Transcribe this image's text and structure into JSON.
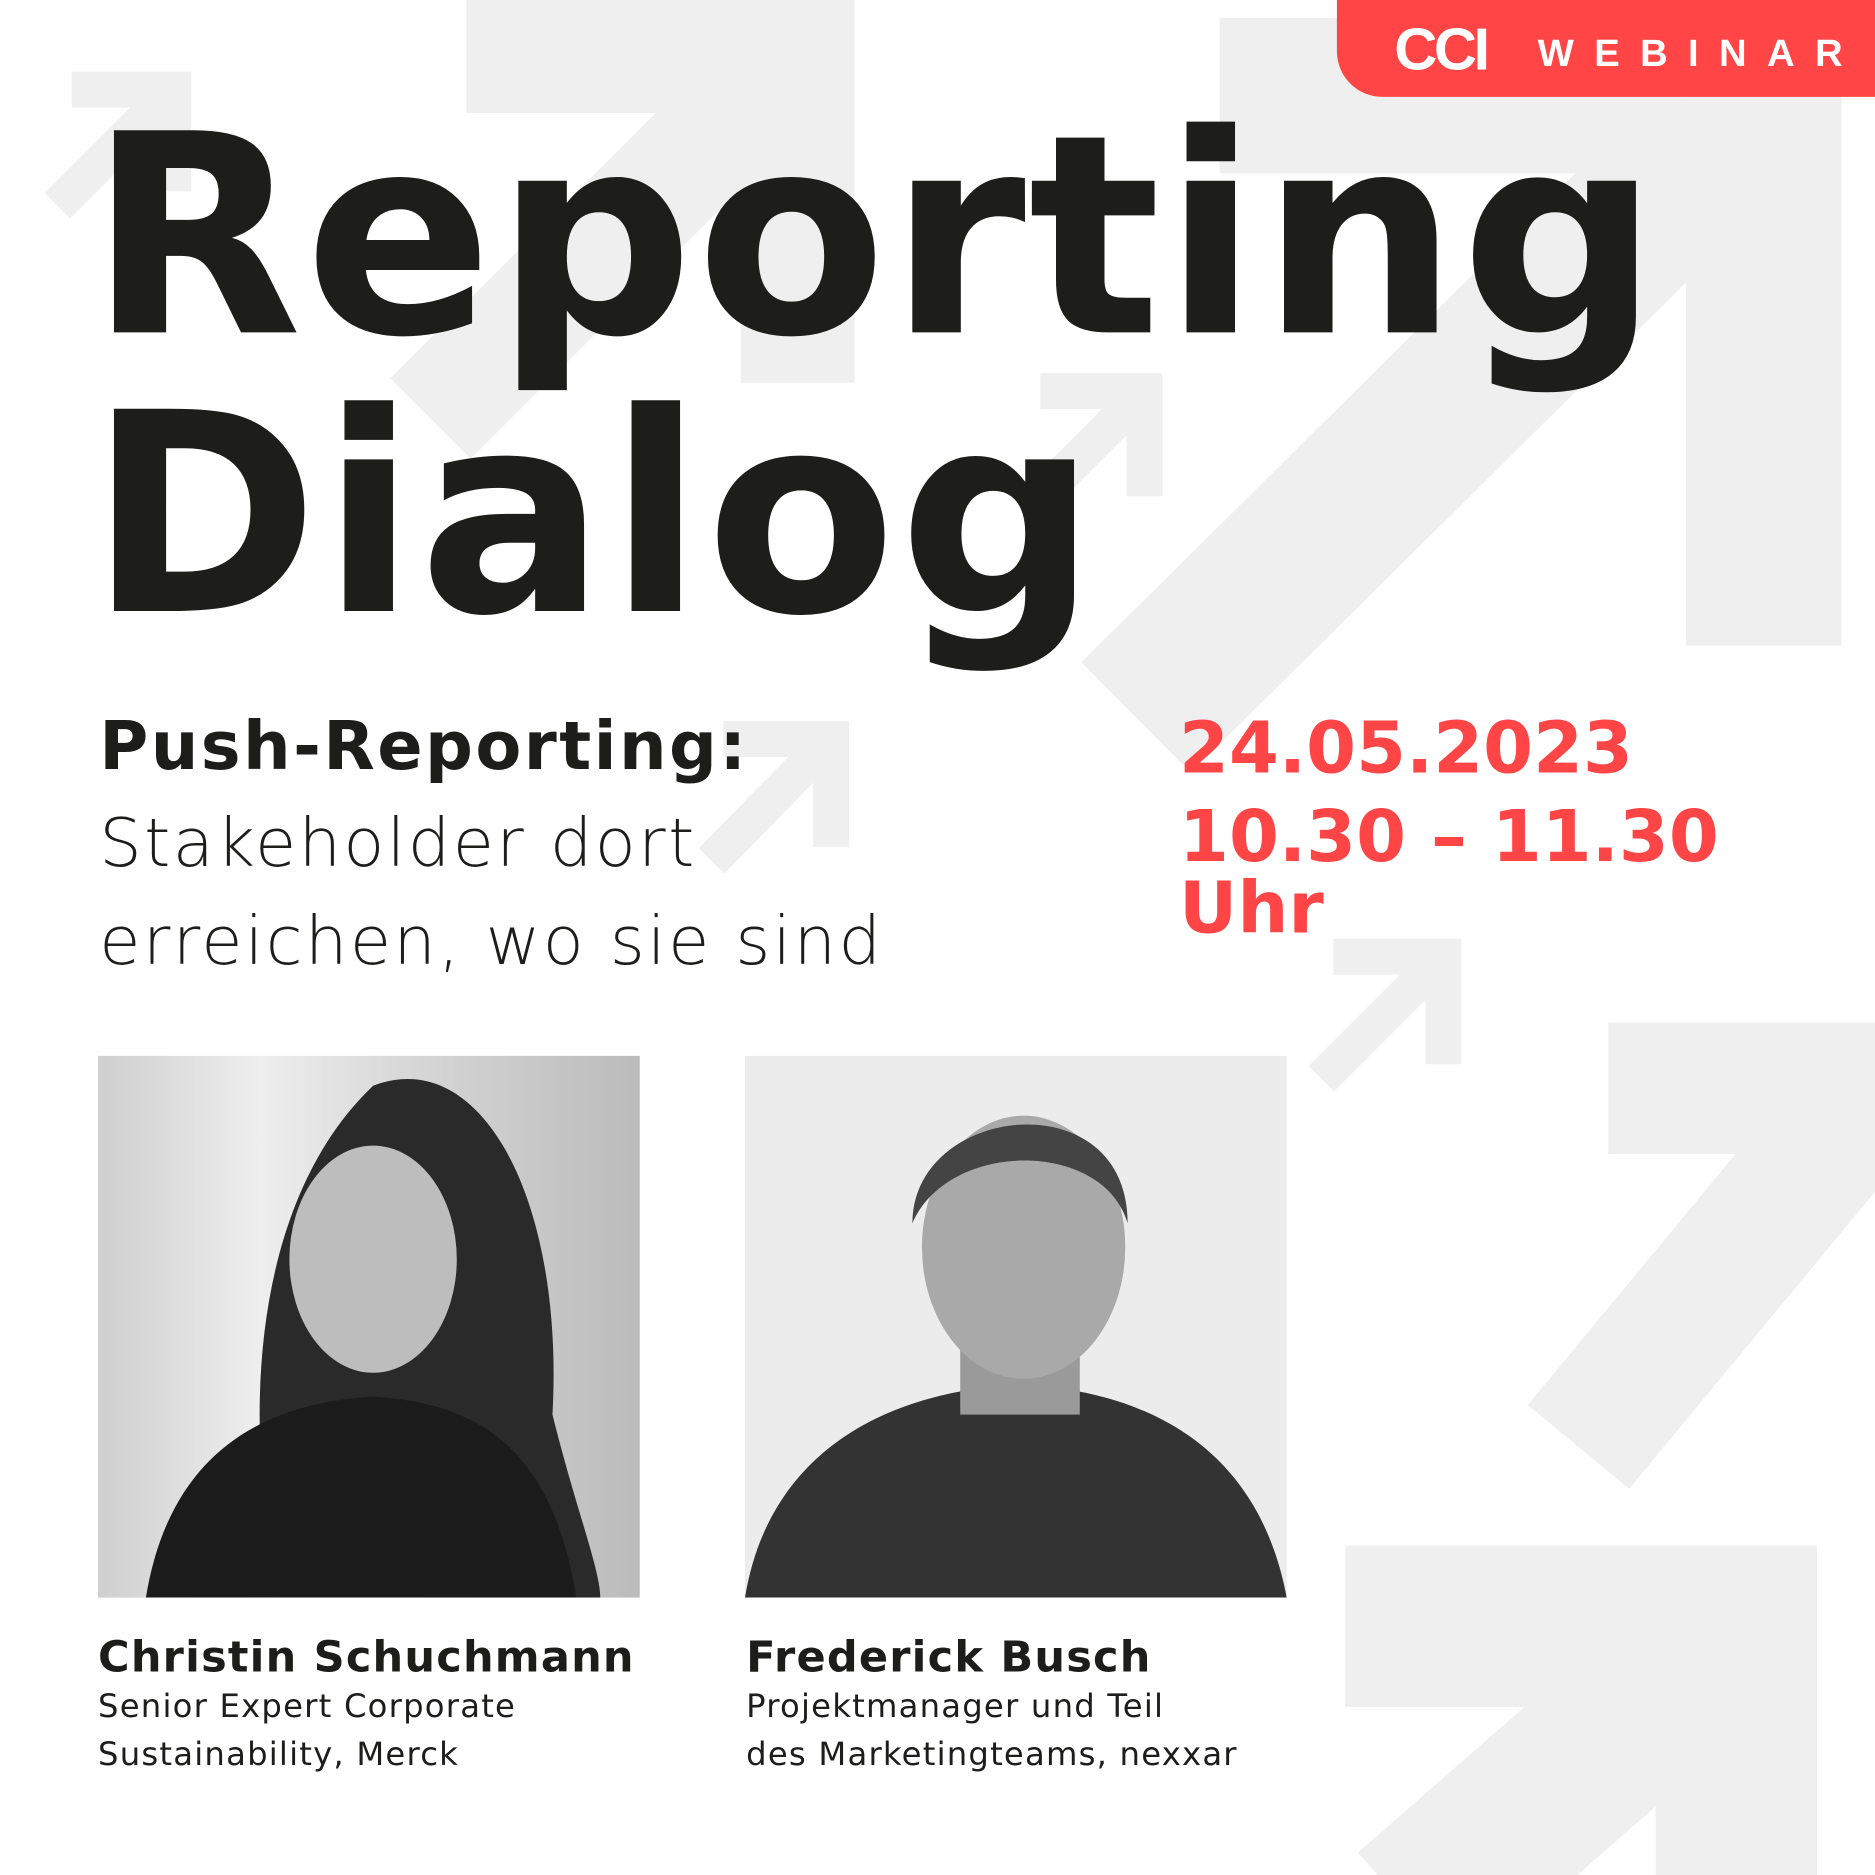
{
  "badge": {
    "logo": "CCI",
    "label": "WEBINAR"
  },
  "title": {
    "line1": "Reporting",
    "line2": "Dialog"
  },
  "subtitle": {
    "bold": "Push-Reporting:",
    "line2": "Stakeholder dort",
    "line3": "erreichen, wo sie sind"
  },
  "event": {
    "date": "24.05.2023",
    "time": "10.30 – 11.30 Uhr"
  },
  "speakers": [
    {
      "name": "Christin Schuchmann",
      "role_line1": "Senior Expert Corporate",
      "role_line2": "Sustainability, Merck"
    },
    {
      "name": "Frederick Busch",
      "role_line1": "Projektmanager und Teil",
      "role_line2": "des Marketingteams, nexxar"
    }
  ],
  "colors": {
    "accent": "#ff4545",
    "text": "#1d1d1b",
    "arrows": "#efefef"
  }
}
